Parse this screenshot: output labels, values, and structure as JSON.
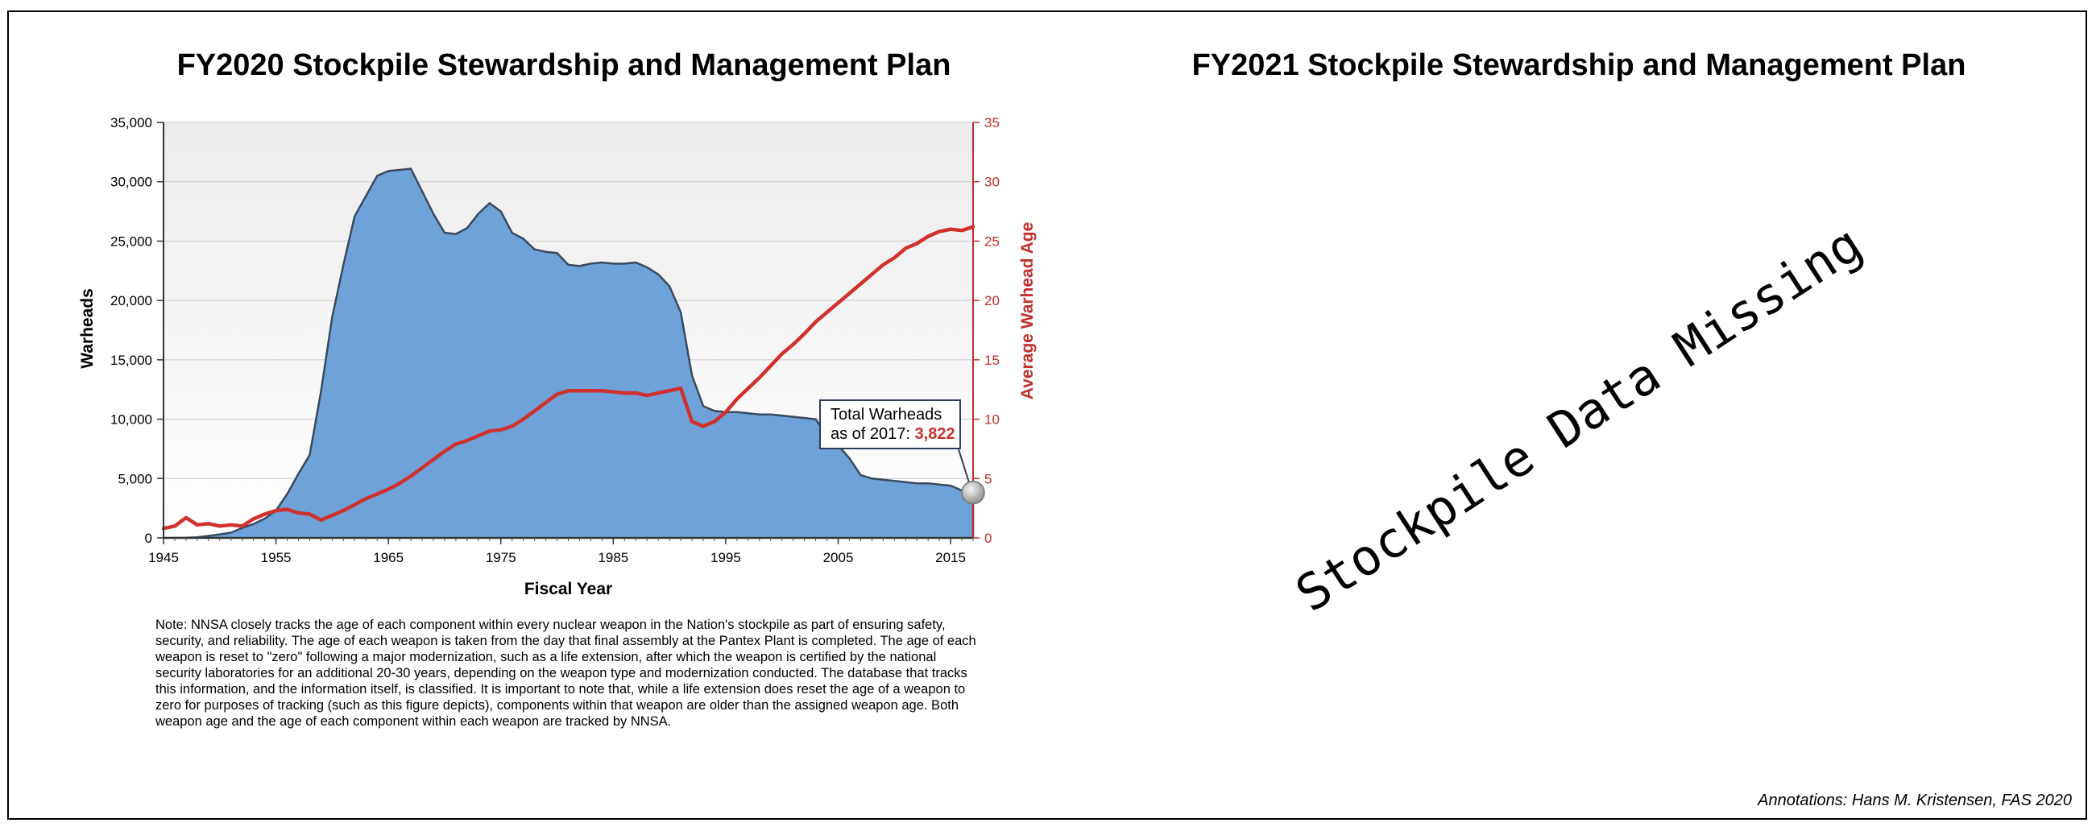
{
  "left_panel": {
    "title": "FY2020 Stockpile Stewardship and Management Plan",
    "callout_line1": "Total Warheads",
    "callout_line2": "as of 2017:",
    "callout_value": "3,822",
    "note": "Note: NNSA closely tracks the age of each component within every nuclear weapon in the Nation's stockpile as part of ensuring safety, security, and reliability.  The age of each weapon is taken from the day that final assembly at the Pantex Plant is completed.  The age of each weapon is reset to \"zero\" following a major modernization, such as a life extension, after which the weapon is certified by the national security laboratories for an additional 20-30 years, depending on the weapon type and modernization conducted.  The database that tracks this information, and the information itself, is classified.  It is important to note that, while a life extension does reset the age of a weapon to zero for purposes of tracking (such as this figure depicts), components within that weapon are older than the assigned weapon age.  Both weapon age and the age of each component within each weapon are tracked by NNSA."
  },
  "right_panel": {
    "title": "FY2021 Stockpile Stewardship and Management Plan",
    "watermark_text": "Stockpile Data Missing"
  },
  "credit": "Annotations: Hans M. Kristensen, FAS 2020",
  "colors": {
    "area_fill": "#6fa2d8",
    "area_stroke": "#3a4a5e",
    "age_line": "#d0312d",
    "right_axis": "#c0302c"
  },
  "chart_data": {
    "type": "area",
    "title": "FY2020 Stockpile Stewardship and Management Plan",
    "xlabel": "Fiscal Year",
    "ylabel": "Warheads",
    "y2label": "Average Warhead Age",
    "xlim": [
      1945,
      2017
    ],
    "ylim": [
      0,
      35000
    ],
    "y2lim": [
      0,
      35
    ],
    "x_ticks": [
      "1945",
      "1955",
      "1965",
      "1975",
      "1985",
      "1995",
      "2005",
      "2015"
    ],
    "y_ticks": [
      "0",
      "5,000",
      "10,000",
      "15,000",
      "20,000",
      "25,000",
      "30,000",
      "35,000"
    ],
    "y2_ticks": [
      "0",
      "5",
      "10",
      "15",
      "20",
      "25",
      "30",
      "35"
    ],
    "grid": true,
    "series": [
      {
        "name": "Warheads",
        "axis": "left",
        "x": [
          1945,
          1946,
          1947,
          1948,
          1949,
          1950,
          1951,
          1952,
          1953,
          1954,
          1955,
          1956,
          1957,
          1958,
          1959,
          1960,
          1961,
          1962,
          1963,
          1964,
          1965,
          1966,
          1967,
          1968,
          1969,
          1970,
          1971,
          1972,
          1973,
          1974,
          1975,
          1976,
          1977,
          1978,
          1979,
          1980,
          1981,
          1982,
          1983,
          1984,
          1985,
          1986,
          1987,
          1988,
          1989,
          1990,
          1991,
          1992,
          1993,
          1994,
          1995,
          1996,
          1997,
          1998,
          1999,
          2000,
          2001,
          2002,
          2003,
          2004,
          2005,
          2006,
          2007,
          2008,
          2009,
          2010,
          2011,
          2012,
          2013,
          2014,
          2015,
          2016,
          2017
        ],
        "values": [
          2,
          9,
          13,
          50,
          170,
          300,
          440,
          840,
          1170,
          1630,
          2300,
          3700,
          5400,
          7000,
          12300,
          18600,
          23000,
          27100,
          28800,
          30500,
          30900,
          31000,
          31100,
          29200,
          27300,
          25700,
          25600,
          26100,
          27300,
          28200,
          27500,
          25700,
          25200,
          24300,
          24100,
          24000,
          23000,
          22900,
          23100,
          23200,
          23100,
          23100,
          23200,
          22800,
          22200,
          21200,
          19000,
          13700,
          11100,
          10700,
          10600,
          10600,
          10500,
          10400,
          10400,
          10300,
          10200,
          10100,
          10000,
          8600,
          7800,
          6700,
          5300,
          5000,
          4900,
          4800,
          4700,
          4600,
          4600,
          4500,
          4400,
          4000,
          3822
        ]
      },
      {
        "name": "Average Warhead Age",
        "axis": "right",
        "x": [
          1945,
          1946,
          1947,
          1948,
          1949,
          1950,
          1951,
          1952,
          1953,
          1954,
          1955,
          1956,
          1957,
          1958,
          1959,
          1960,
          1961,
          1962,
          1963,
          1964,
          1965,
          1966,
          1967,
          1968,
          1969,
          1970,
          1971,
          1972,
          1973,
          1974,
          1975,
          1976,
          1977,
          1978,
          1979,
          1980,
          1981,
          1982,
          1983,
          1984,
          1985,
          1986,
          1987,
          1988,
          1989,
          1990,
          1991,
          1992,
          1993,
          1994,
          1995,
          1996,
          1997,
          1998,
          1999,
          2000,
          2001,
          2002,
          2003,
          2004,
          2005,
          2006,
          2007,
          2008,
          2009,
          2010,
          2011,
          2012,
          2013,
          2014,
          2015,
          2016,
          2017
        ],
        "values": [
          0.8,
          1.0,
          1.7,
          1.1,
          1.2,
          1.0,
          1.1,
          1.0,
          1.6,
          2.0,
          2.3,
          2.4,
          2.1,
          2.0,
          1.5,
          1.9,
          2.3,
          2.8,
          3.3,
          3.7,
          4.1,
          4.6,
          5.2,
          5.9,
          6.6,
          7.3,
          7.9,
          8.2,
          8.6,
          9.0,
          9.1,
          9.4,
          10.0,
          10.7,
          11.4,
          12.1,
          12.4,
          12.4,
          12.4,
          12.4,
          12.3,
          12.2,
          12.2,
          12.0,
          12.2,
          12.4,
          12.6,
          9.8,
          9.4,
          9.8,
          10.6,
          11.7,
          12.6,
          13.5,
          14.5,
          15.5,
          16.3,
          17.2,
          18.2,
          19.0,
          19.8,
          20.6,
          21.4,
          22.2,
          23.0,
          23.6,
          24.4,
          24.8,
          25.4,
          25.8,
          26.0,
          25.9,
          26.2
        ]
      }
    ],
    "annotations": [
      {
        "text": "Total Warheads as of 2017: 3,822",
        "x": 2017,
        "y": 3822
      }
    ]
  }
}
